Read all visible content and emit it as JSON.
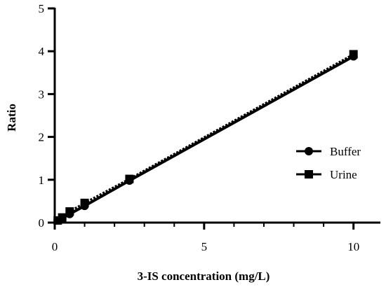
{
  "chart_data": {
    "type": "line",
    "xlabel": "3-IS concentration (mg/L)",
    "ylabel": "Ratio",
    "xlim": [
      0,
      10.9
    ],
    "ylim": [
      0,
      5
    ],
    "x_ticks": [
      0,
      5,
      10
    ],
    "y_ticks": [
      0,
      1,
      2,
      3,
      4,
      5
    ],
    "x_tick_labels": [
      "0",
      "5",
      "10"
    ],
    "y_tick_labels": [
      "0",
      "1",
      "2",
      "3",
      "4",
      "5"
    ],
    "grid": false,
    "legend_position": "right",
    "series": [
      {
        "name": "Buffer",
        "marker": "circle",
        "color": "#000000",
        "points": [
          {
            "x": 0.1,
            "y": 0.05
          },
          {
            "x": 0.25,
            "y": 0.1
          },
          {
            "x": 0.5,
            "y": 0.2
          },
          {
            "x": 1,
            "y": 0.39
          },
          {
            "x": 2.5,
            "y": 0.98
          },
          {
            "x": 10,
            "y": 3.88
          }
        ]
      },
      {
        "name": "Urine",
        "marker": "square",
        "color": "#000000",
        "points": [
          {
            "x": 0.1,
            "y": 0.05
          },
          {
            "x": 0.25,
            "y": 0.12
          },
          {
            "x": 0.5,
            "y": 0.26
          },
          {
            "x": 1,
            "y": 0.46
          },
          {
            "x": 2.5,
            "y": 1.02
          },
          {
            "x": 10,
            "y": 3.93
          }
        ]
      }
    ]
  }
}
